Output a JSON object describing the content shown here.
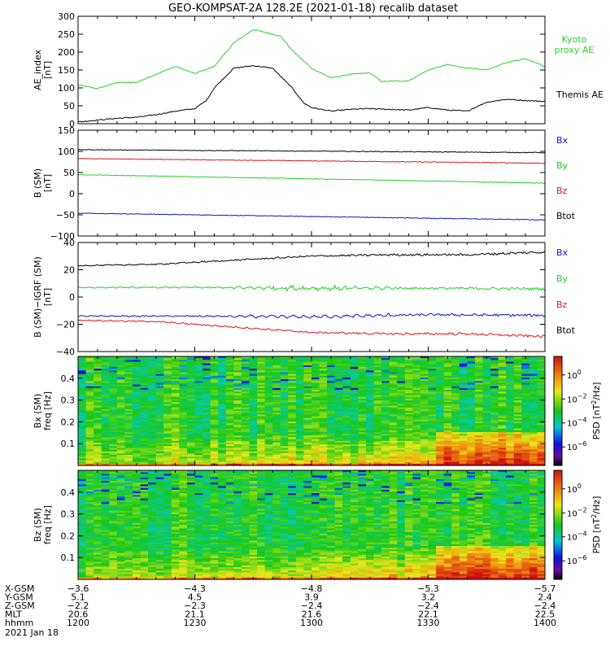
{
  "title": "GEO-KOMPSAT-2A 128.2E (2021-01-18) recalib dataset",
  "colors": {
    "black": "#000000",
    "red": "#e0141c",
    "green": "#22d022",
    "blue": "#0a14c8",
    "kyoto_green": "#2ad12a"
  },
  "chart_data": [
    {
      "type": "line",
      "panel": "ae-index",
      "ylabel": [
        "AE_index",
        "[nT]"
      ],
      "ylim": [
        0,
        300
      ],
      "yticks": [
        "0",
        "50",
        "100",
        "150",
        "200",
        "250",
        "300"
      ],
      "xlim_hhmm": [
        "1200",
        "1400"
      ],
      "series": [
        {
          "name": "Kyoto proxy AE",
          "legend_lines": [
            "Kyoto",
            "proxy AE"
          ],
          "color": "#2ad12a",
          "x_min": [
            0,
            5,
            10,
            15,
            20,
            25,
            30,
            35,
            40,
            45,
            50,
            52,
            55,
            60,
            65,
            70,
            75,
            78,
            85,
            90,
            95,
            100,
            105,
            110,
            115,
            120
          ],
          "y": [
            108,
            98,
            115,
            115,
            138,
            160,
            140,
            160,
            225,
            263,
            250,
            245,
            205,
            155,
            128,
            138,
            142,
            118,
            120,
            150,
            165,
            155,
            150,
            170,
            182,
            160
          ]
        },
        {
          "name": "Themis AE",
          "legend_lines": [
            "Themis AE"
          ],
          "color": "#000000",
          "x_min": [
            0,
            5,
            10,
            15,
            20,
            25,
            30,
            33,
            35,
            40,
            45,
            50,
            55,
            58,
            60,
            65,
            70,
            75,
            80,
            85,
            90,
            95,
            100,
            105,
            110,
            115,
            120
          ],
          "y": [
            5,
            10,
            15,
            18,
            25,
            35,
            42,
            65,
            100,
            155,
            162,
            155,
            100,
            58,
            45,
            35,
            40,
            42,
            40,
            38,
            45,
            38,
            35,
            60,
            68,
            65,
            62
          ]
        }
      ]
    },
    {
      "type": "line",
      "panel": "b-sm",
      "ylabel": [
        "B (SM)",
        "[nT]"
      ],
      "ylim": [
        -100,
        150
      ],
      "yticks": [
        "−100",
        "−50",
        "0",
        "50",
        "100",
        "150"
      ],
      "xlim_hhmm": [
        "1200",
        "1400"
      ],
      "series": [
        {
          "name": "Bx",
          "color": "#0a14c8",
          "x_min": [
            0,
            120
          ],
          "y": [
            -46,
            -62
          ]
        },
        {
          "name": "By",
          "color": "#22d022",
          "x_min": [
            0,
            120
          ],
          "y": [
            45,
            25
          ]
        },
        {
          "name": "Bz",
          "color": "#e0141c",
          "x_min": [
            0,
            120
          ],
          "y": [
            83,
            72
          ]
        },
        {
          "name": "Btot",
          "color": "#000000",
          "x_min": [
            0,
            120
          ],
          "y": [
            104,
            97
          ]
        }
      ]
    },
    {
      "type": "line",
      "panel": "b-sm-minus-igrf",
      "ylabel": [
        "B (SM)−IGRF (SM)",
        "[nT]"
      ],
      "ylim": [
        -40,
        40
      ],
      "yticks": [
        "−40",
        "−20",
        "0",
        "20",
        "40"
      ],
      "xlim_hhmm": [
        "1200",
        "1400"
      ],
      "series": [
        {
          "name": "Bx",
          "color": "#0a14c8",
          "x_min": [
            0,
            30,
            60,
            90,
            120
          ],
          "y": [
            -14,
            -14,
            -14.5,
            -13,
            -13.5
          ]
        },
        {
          "name": "By",
          "color": "#22d022",
          "x_min": [
            0,
            30,
            60,
            90,
            120
          ],
          "y": [
            7,
            7,
            6.5,
            6.5,
            6
          ]
        },
        {
          "name": "Bz",
          "color": "#e0141c",
          "x_min": [
            0,
            20,
            40,
            60,
            80,
            100,
            120
          ],
          "y": [
            -17,
            -18,
            -22,
            -26,
            -27,
            -27,
            -29
          ]
        },
        {
          "name": "Btot",
          "color": "#000000",
          "x_min": [
            0,
            20,
            40,
            60,
            80,
            100,
            120
          ],
          "y": [
            23,
            24,
            27,
            30,
            31,
            31,
            33
          ]
        }
      ]
    },
    {
      "type": "heatmap",
      "panel": "bx-spectrogram",
      "ylabel": [
        "Bx (SM)",
        "freq [Hz]"
      ],
      "ylim": [
        0,
        0.5
      ],
      "yticks": [
        "0.1",
        "0.2",
        "0.3",
        "0.4"
      ],
      "colorbar_label": "PSD [nT²/Hz]",
      "colorbar_label_parts": [
        "PSD [nT",
        "2",
        "/Hz]"
      ],
      "colorbar_ticks": [
        {
          "base": "10",
          "exp": "0"
        },
        {
          "base": "10",
          "exp": "−2"
        },
        {
          "base": "10",
          "exp": "−4"
        },
        {
          "base": "10",
          "exp": "−6"
        }
      ]
    },
    {
      "type": "heatmap",
      "panel": "bz-spectrogram",
      "ylabel": [
        "Bz (SM)",
        "freq [Hz]"
      ],
      "ylim": [
        0,
        0.5
      ],
      "yticks": [
        "0.1",
        "0.2",
        "0.3",
        "0.4"
      ],
      "colorbar_label": "PSD [nT²/Hz]",
      "colorbar_label_parts": [
        "PSD [nT",
        "2",
        "/Hz]"
      ],
      "colorbar_ticks": [
        {
          "base": "10",
          "exp": "0"
        },
        {
          "base": "10",
          "exp": "−2"
        },
        {
          "base": "10",
          "exp": "−4"
        },
        {
          "base": "10",
          "exp": "−6"
        }
      ]
    }
  ],
  "ephemeris": {
    "rows": [
      {
        "label": "X-GSM",
        "values": [
          "−3.6",
          "−4.3",
          "−4.8",
          "−5.3",
          "−5.7"
        ]
      },
      {
        "label": "Y-GSM",
        "values": [
          "5.1",
          "4.5",
          "3.9",
          "3.2",
          "2.4"
        ]
      },
      {
        "label": "Z-GSM",
        "values": [
          "−2.2",
          "−2.3",
          "−2.4",
          "−2.4",
          "−2.4"
        ]
      },
      {
        "label": "MLT",
        "values": [
          "20.6",
          "21.1",
          "21.6",
          "22.1",
          "22.5"
        ]
      },
      {
        "label": "hhmm",
        "values": [
          "1200",
          "1230",
          "1300",
          "1330",
          "1400"
        ]
      }
    ],
    "date": "2021 Jan 18"
  }
}
